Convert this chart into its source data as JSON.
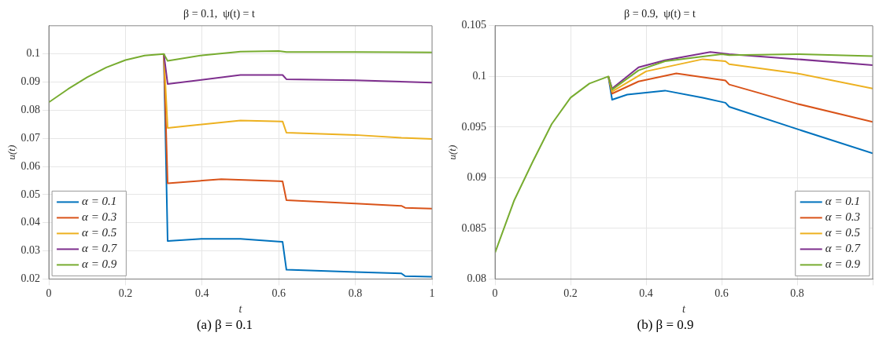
{
  "chart_data": [
    {
      "type": "line",
      "title": "β = 0.1,  ψ(t) = t",
      "xlabel": "t",
      "ylabel": "u(t)",
      "xlim": [
        0,
        1
      ],
      "xticks": [
        0,
        0.2,
        0.4,
        0.6,
        0.8,
        1
      ],
      "ylim": [
        0.02,
        0.11
      ],
      "yticks": [
        0.02,
        0.03,
        0.04,
        0.05,
        0.06,
        0.07,
        0.08,
        0.09,
        0.1
      ],
      "grid": true,
      "legend": "bottom left",
      "marker": "none",
      "line_style": "solid",
      "annotations": [
        "(a) β = 0.1"
      ],
      "series": [
        {
          "name": "α = 0.1",
          "color": "#0072bd",
          "x": [
            0.3,
            0.31,
            0.4,
            0.5,
            0.6,
            0.61,
            0.62,
            0.8,
            0.92,
            0.93,
            1
          ],
          "values": [
            0.1,
            0.0335,
            0.0343,
            0.0343,
            0.0333,
            0.0332,
            0.0233,
            0.0225,
            0.022,
            0.021,
            0.0208
          ]
        },
        {
          "name": "α = 0.3",
          "color": "#d95319",
          "x": [
            0.3,
            0.31,
            0.45,
            0.6,
            0.61,
            0.62,
            0.8,
            0.92,
            0.93,
            1
          ],
          "values": [
            0.1,
            0.054,
            0.0555,
            0.0548,
            0.0547,
            0.048,
            0.0468,
            0.046,
            0.0453,
            0.045
          ]
        },
        {
          "name": "α = 0.5",
          "color": "#edb120",
          "x": [
            0.3,
            0.31,
            0.5,
            0.61,
            0.62,
            0.8,
            0.92,
            1
          ],
          "values": [
            0.1,
            0.0737,
            0.0763,
            0.076,
            0.072,
            0.0712,
            0.0702,
            0.0698
          ]
        },
        {
          "name": "α = 0.7",
          "color": "#7e2f8e",
          "x": [
            0.3,
            0.31,
            0.5,
            0.61,
            0.62,
            0.8,
            1
          ],
          "values": [
            0.1,
            0.0893,
            0.0925,
            0.0925,
            0.091,
            0.0906,
            0.0898
          ]
        },
        {
          "name": "α = 0.9",
          "color": "#77ac30",
          "x": [
            0,
            0.05,
            0.1,
            0.15,
            0.2,
            0.25,
            0.3,
            0.31,
            0.4,
            0.5,
            0.6,
            0.62,
            0.8,
            1
          ],
          "values": [
            0.0828,
            0.0875,
            0.0917,
            0.0952,
            0.0978,
            0.0994,
            0.1,
            0.0975,
            0.0995,
            0.1008,
            0.101,
            0.1007,
            0.1007,
            0.1005
          ]
        }
      ]
    },
    {
      "type": "line",
      "title": "β = 0.9,  ψ(t) = t",
      "xlabel": "t",
      "ylabel": "u(t)",
      "xlim": [
        0,
        1
      ],
      "xticks": [
        0,
        0.2,
        0.4,
        0.6,
        0.8,
        {
          "value": 1,
          "label": null
        }
      ],
      "ylim": [
        0.08,
        0.105
      ],
      "yticks": [
        0.08,
        0.085,
        0.09,
        0.095,
        0.1,
        0.105
      ],
      "grid": true,
      "legend": "bottom right",
      "marker": "none",
      "line_style": "solid",
      "annotations": [
        "(b) β = 0.9"
      ],
      "series": [
        {
          "name": "α = 0.1",
          "color": "#0072bd",
          "x": [
            0.3,
            0.31,
            0.35,
            0.45,
            0.55,
            0.61,
            0.62,
            0.8,
            1
          ],
          "values": [
            0.1,
            0.0977,
            0.0982,
            0.0986,
            0.0979,
            0.0974,
            0.097,
            0.0948,
            0.0924
          ]
        },
        {
          "name": "α = 0.3",
          "color": "#d95319",
          "x": [
            0.3,
            0.31,
            0.38,
            0.48,
            0.61,
            0.62,
            0.8,
            1
          ],
          "values": [
            0.1,
            0.0983,
            0.0995,
            0.1003,
            0.0996,
            0.0992,
            0.0973,
            0.0955
          ]
        },
        {
          "name": "α = 0.5",
          "color": "#edb120",
          "x": [
            0.3,
            0.31,
            0.4,
            0.55,
            0.61,
            0.62,
            0.8,
            1
          ],
          "values": [
            0.1,
            0.0985,
            0.1005,
            0.1017,
            0.1015,
            0.1012,
            0.1003,
            0.0988
          ]
        },
        {
          "name": "α = 0.7",
          "color": "#7e2f8e",
          "x": [
            0.3,
            0.31,
            0.38,
            0.45,
            0.57,
            0.62,
            0.8,
            1
          ],
          "values": [
            0.1,
            0.0988,
            0.1009,
            0.1016,
            0.1024,
            0.1022,
            0.1017,
            0.1011
          ]
        },
        {
          "name": "α = 0.9",
          "color": "#77ac30",
          "x": [
            0,
            0.05,
            0.1,
            0.15,
            0.2,
            0.25,
            0.3,
            0.31,
            0.38,
            0.45,
            0.6,
            0.62,
            0.8,
            1
          ],
          "values": [
            0.0826,
            0.0877,
            0.0916,
            0.0953,
            0.0979,
            0.0993,
            0.1,
            0.0987,
            0.1006,
            0.1015,
            0.1022,
            0.1021,
            0.1022,
            0.102
          ]
        }
      ]
    }
  ]
}
